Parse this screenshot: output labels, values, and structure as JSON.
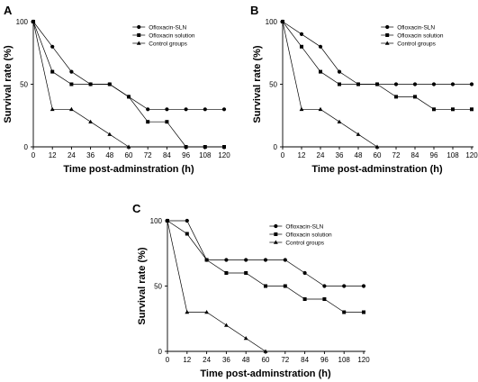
{
  "chart_data": [
    {
      "type": "line",
      "panel": "A",
      "xlabel": "Time post-adminstration (h)",
      "ylabel": "Survival rate (%)",
      "x": [
        0,
        12,
        24,
        36,
        48,
        60,
        72,
        84,
        96,
        108,
        120
      ],
      "xticks": [
        "0",
        "12",
        "24",
        "36",
        "48",
        "60",
        "72",
        "84",
        "96",
        "108",
        "120"
      ],
      "yticks": [
        "0",
        "50",
        "100"
      ],
      "ylim": [
        0,
        100
      ],
      "xlim": [
        0,
        120
      ],
      "legend_position": "top-right",
      "series": [
        {
          "name": "Ofloxacin-SLN",
          "marker": "circle",
          "x": [
            0,
            12,
            24,
            36,
            48,
            60,
            72,
            84,
            96,
            108,
            120
          ],
          "y": [
            100,
            80,
            60,
            50,
            50,
            40,
            30,
            30,
            30,
            30,
            30
          ]
        },
        {
          "name": "Ofloxacin solution",
          "marker": "square",
          "x": [
            0,
            12,
            24,
            36,
            48,
            60,
            72,
            84,
            96,
            108,
            120
          ],
          "y": [
            100,
            60,
            50,
            50,
            50,
            40,
            20,
            20,
            0,
            0,
            0
          ]
        },
        {
          "name": "Control groups",
          "marker": "triangle",
          "x": [
            0,
            12,
            24,
            36,
            48,
            60
          ],
          "y": [
            100,
            30,
            30,
            20,
            10,
            0
          ]
        }
      ]
    },
    {
      "type": "line",
      "panel": "B",
      "xlabel": "Time post-adminstration (h)",
      "ylabel": "Survival rate (%)",
      "x": [
        0,
        12,
        24,
        36,
        48,
        60,
        72,
        84,
        96,
        108,
        120
      ],
      "xticks": [
        "0",
        "12",
        "24",
        "36",
        "48",
        "60",
        "72",
        "84",
        "96",
        "108",
        "120"
      ],
      "yticks": [
        "0",
        "50",
        "100"
      ],
      "ylim": [
        0,
        100
      ],
      "xlim": [
        0,
        120
      ],
      "legend_position": "top-right",
      "series": [
        {
          "name": "Ofloxacin-SLN",
          "marker": "circle",
          "x": [
            0,
            12,
            24,
            36,
            48,
            60,
            72,
            84,
            96,
            108,
            120
          ],
          "y": [
            100,
            90,
            80,
            60,
            50,
            50,
            50,
            50,
            50,
            50,
            50
          ]
        },
        {
          "name": "Ofloxacin solution",
          "marker": "square",
          "x": [
            0,
            12,
            24,
            36,
            48,
            60,
            72,
            84,
            96,
            108,
            120
          ],
          "y": [
            100,
            80,
            60,
            50,
            50,
            50,
            40,
            40,
            30,
            30,
            30
          ]
        },
        {
          "name": "Control groups",
          "marker": "triangle",
          "x": [
            0,
            12,
            24,
            36,
            48,
            60
          ],
          "y": [
            100,
            30,
            30,
            20,
            10,
            0
          ]
        }
      ]
    },
    {
      "type": "line",
      "panel": "C",
      "xlabel": "Time post-adminstration (h)",
      "ylabel": "Survival rate (%)",
      "x": [
        0,
        12,
        24,
        36,
        48,
        60,
        72,
        84,
        96,
        108,
        120
      ],
      "xticks": [
        "0",
        "12",
        "24",
        "36",
        "48",
        "60",
        "72",
        "84",
        "96",
        "108",
        "120"
      ],
      "yticks": [
        "0",
        "50",
        "100"
      ],
      "ylim": [
        0,
        100
      ],
      "xlim": [
        0,
        120
      ],
      "legend_position": "top-right",
      "series": [
        {
          "name": "Ofloxacin-SLN",
          "marker": "circle",
          "x": [
            0,
            12,
            24,
            36,
            48,
            60,
            72,
            84,
            96,
            108,
            120
          ],
          "y": [
            100,
            100,
            70,
            70,
            70,
            70,
            70,
            60,
            50,
            50,
            50
          ]
        },
        {
          "name": "Ofloxacin solution",
          "marker": "square",
          "x": [
            0,
            12,
            24,
            36,
            48,
            60,
            72,
            84,
            96,
            108,
            120
          ],
          "y": [
            100,
            90,
            70,
            60,
            60,
            50,
            50,
            40,
            40,
            30,
            30
          ]
        },
        {
          "name": "Control groups",
          "marker": "triangle",
          "x": [
            0,
            12,
            24,
            36,
            48,
            60
          ],
          "y": [
            100,
            30,
            30,
            20,
            10,
            0
          ]
        }
      ]
    }
  ]
}
